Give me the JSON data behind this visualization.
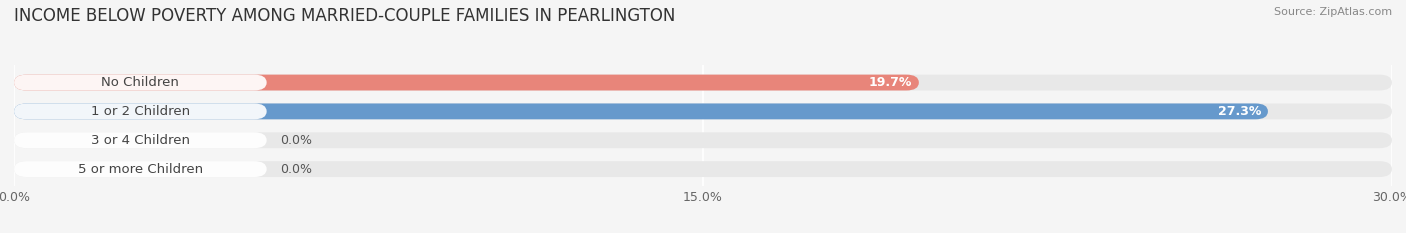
{
  "title": "INCOME BELOW POVERTY AMONG MARRIED-COUPLE FAMILIES IN PEARLINGTON",
  "source": "Source: ZipAtlas.com",
  "categories": [
    "No Children",
    "1 or 2 Children",
    "3 or 4 Children",
    "5 or more Children"
  ],
  "values": [
    19.7,
    27.3,
    0.0,
    0.0
  ],
  "bar_colors": [
    "#E8857A",
    "#6699CC",
    "#C4A8D4",
    "#7EC8C8"
  ],
  "xlim_max": 30.0,
  "xticks": [
    0.0,
    15.0,
    30.0
  ],
  "xtick_labels": [
    "0.0%",
    "15.0%",
    "30.0%"
  ],
  "fig_bg": "#f5f5f5",
  "bar_track_color": "#e8e8e8",
  "bar_height": 0.55,
  "title_fontsize": 12,
  "label_fontsize": 9.5,
  "value_fontsize": 9
}
